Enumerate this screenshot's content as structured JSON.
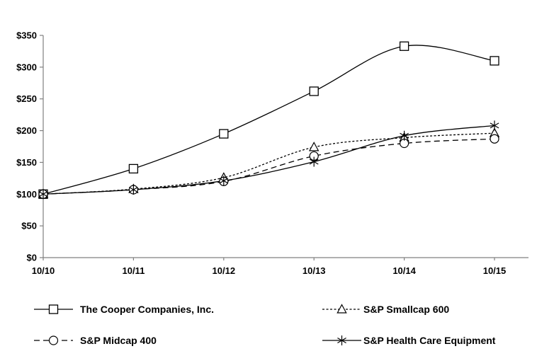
{
  "chart_data": {
    "type": "line",
    "title": "",
    "categories": [
      "10/10",
      "10/11",
      "10/12",
      "10/13",
      "10/14",
      "10/15"
    ],
    "y_axis": {
      "min": 0,
      "max": 350,
      "step": 50,
      "tick_labels": [
        "$0",
        "$50",
        "$100",
        "$150",
        "$200",
        "$250",
        "$300",
        "$350"
      ]
    },
    "series": [
      {
        "name": "The Cooper Companies, Inc.",
        "marker": "square",
        "line_style": "solid",
        "values": [
          100,
          140,
          195,
          262,
          333,
          310
        ]
      },
      {
        "name": "S&P Smallcap 600",
        "marker": "triangle",
        "line_style": "dotted",
        "values": [
          100,
          108,
          126,
          174,
          189,
          196
        ]
      },
      {
        "name": "S&P Midcap 400",
        "marker": "circle",
        "line_style": "dashed",
        "values": [
          100,
          107,
          120,
          160,
          180,
          187
        ]
      },
      {
        "name": "S&P Health Care Equipment",
        "marker": "asterisk",
        "line_style": "solid",
        "values": [
          100,
          107,
          121,
          151,
          192,
          208
        ]
      }
    ],
    "legend_position": "bottom-two-columns",
    "grid": false,
    "smoothed_lines": true,
    "colors": {
      "series_line": "#000000",
      "marker_fill": "#ffffff",
      "axis": "#808080",
      "text": "#000000",
      "background": "#ffffff"
    }
  }
}
